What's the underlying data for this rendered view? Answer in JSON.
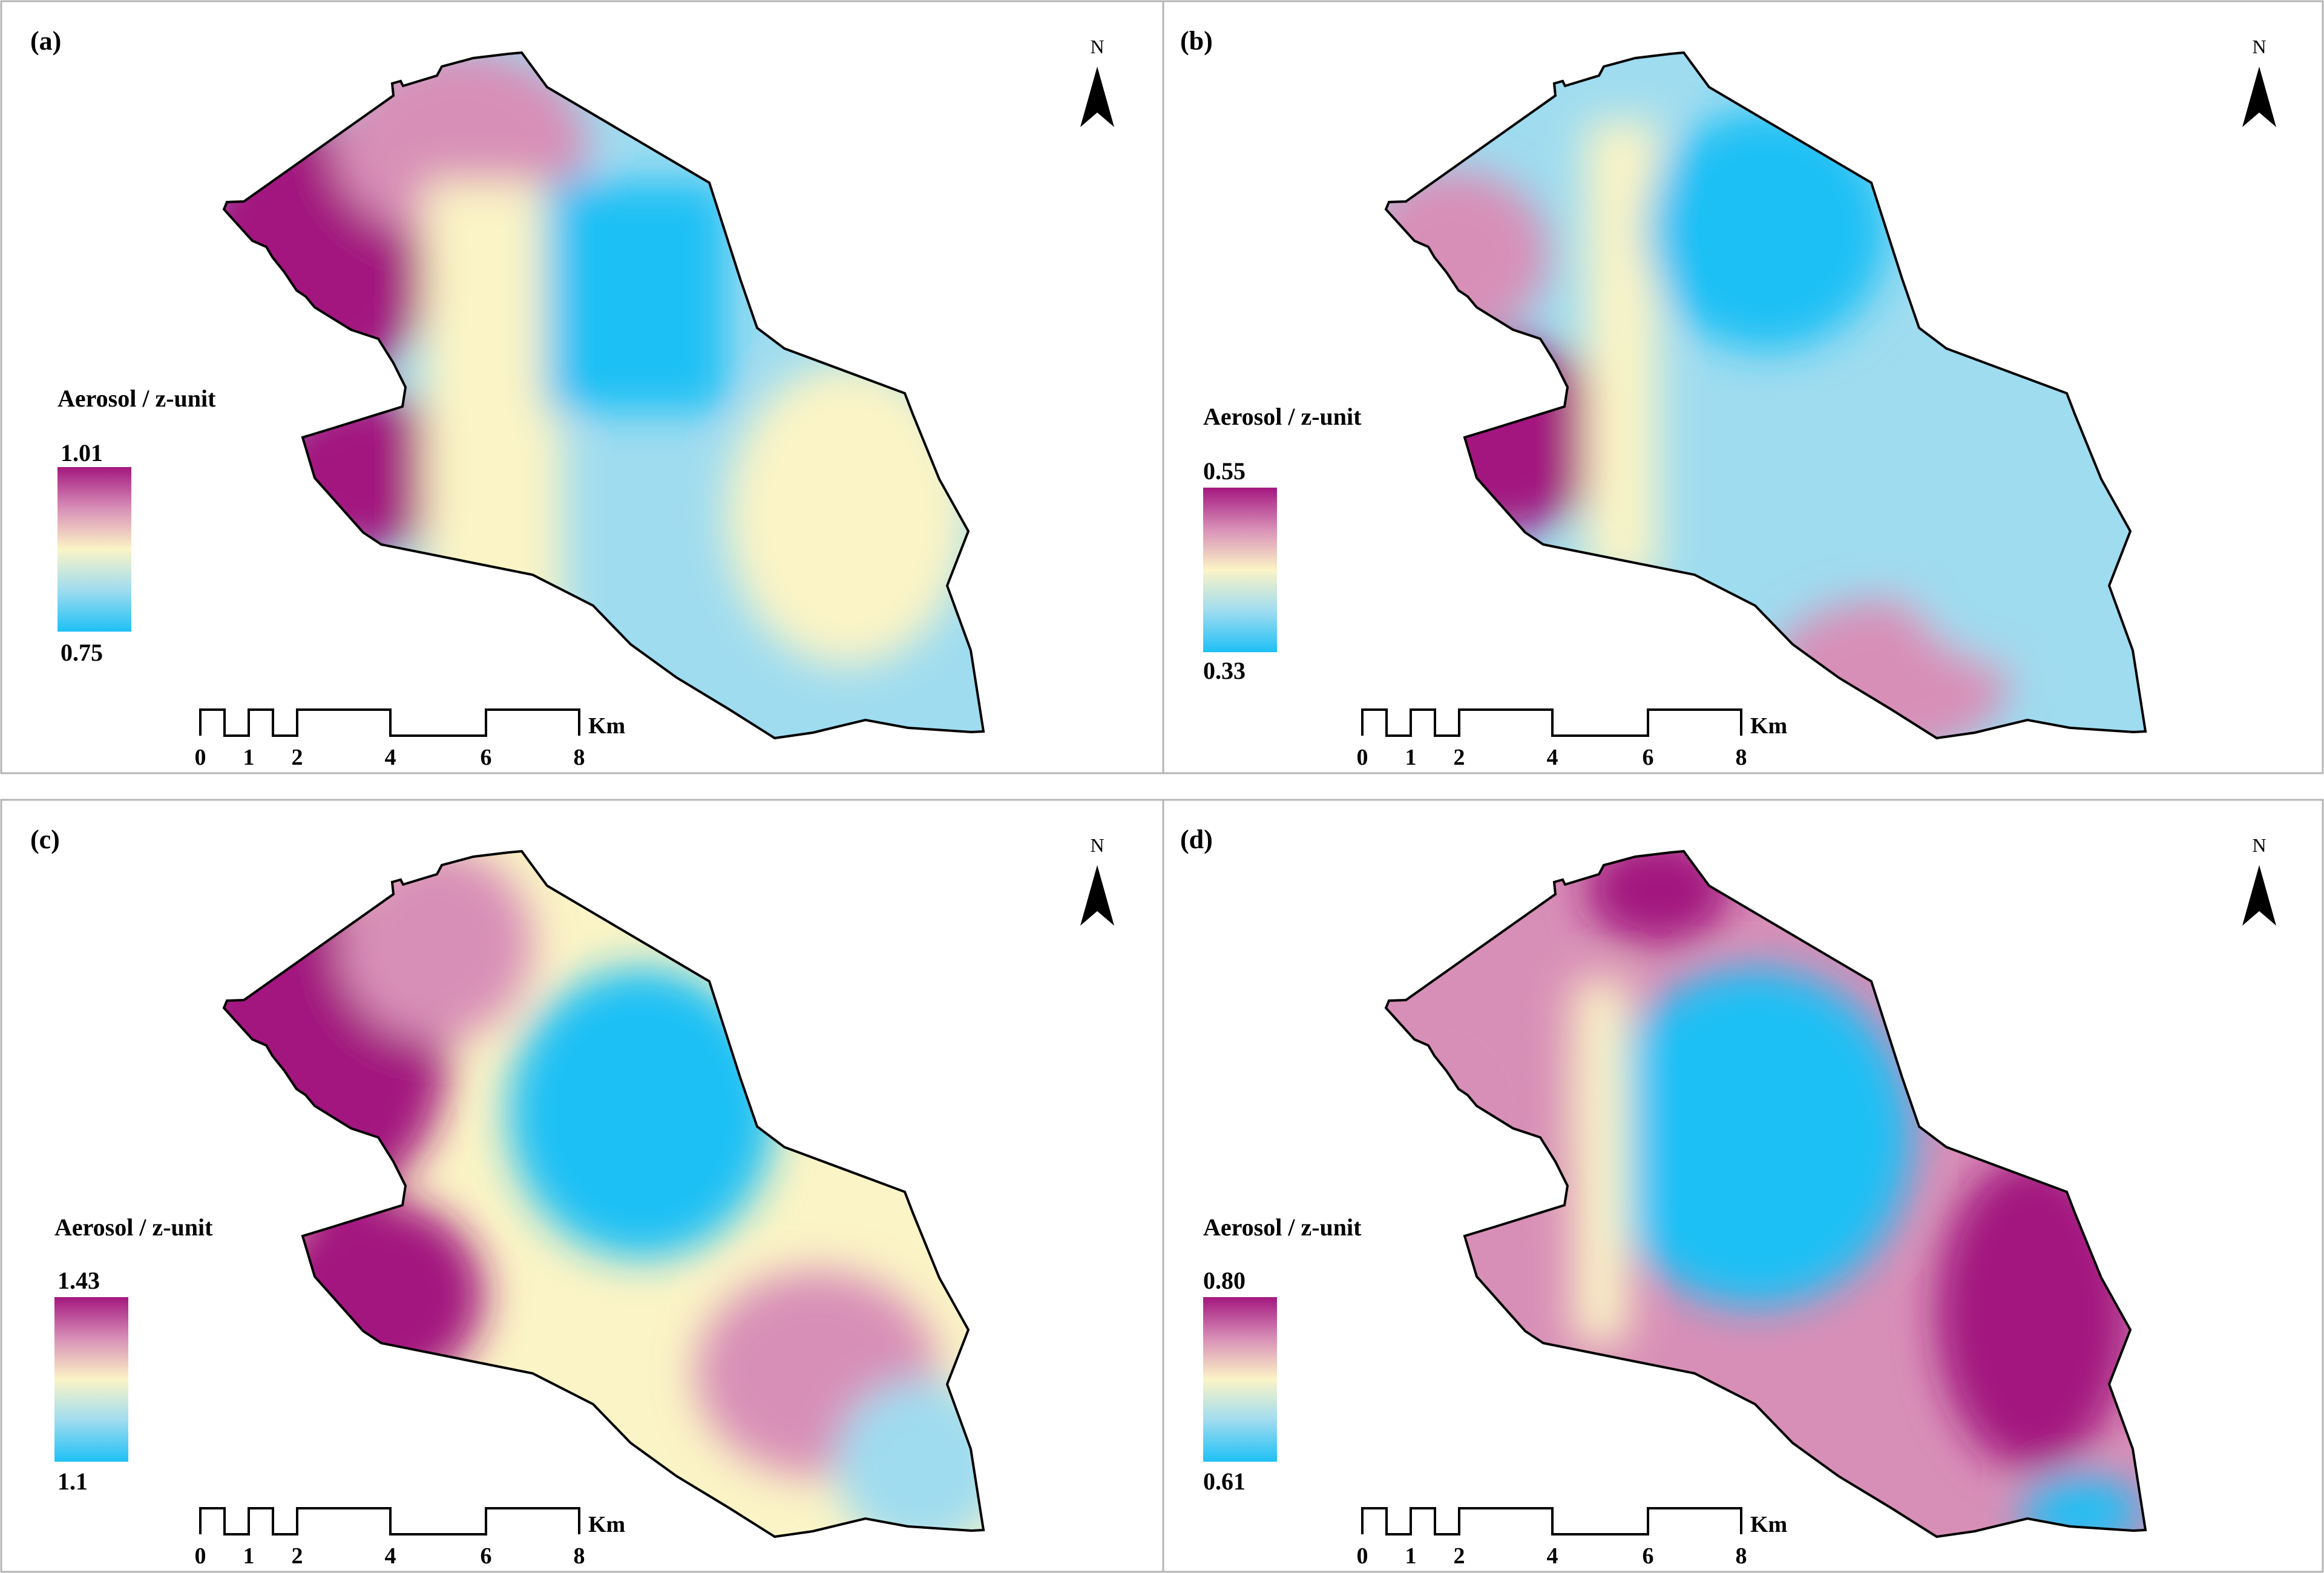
{
  "figure": {
    "colors": {
      "high": "#a3177f",
      "mid_high": "#d88fb7",
      "mid": "#fbf4c6",
      "mid_low": "#9fdcf0",
      "low": "#1ec0f5",
      "frame": "#b5b5b5",
      "outline": "#000000"
    },
    "north_arrow": {
      "label": "N",
      "icon": "north-arrow-icon"
    },
    "scale_bar": {
      "ticks": [
        "0",
        "1",
        "2",
        "4",
        "6",
        "8"
      ],
      "unit": "Km"
    },
    "panels": [
      {
        "id": "a",
        "label": "(a)",
        "legend_title": "Aerosol / z-unit",
        "legend_max": "1.01",
        "legend_min": "0.75"
      },
      {
        "id": "b",
        "label": "(b)",
        "legend_title": "Aerosol / z-unit",
        "legend_max": "0.55",
        "legend_min": "0.33"
      },
      {
        "id": "c",
        "label": "(c)",
        "legend_title": "Aerosol / z-unit",
        "legend_max": "1.43",
        "legend_min": "1.1"
      },
      {
        "id": "d",
        "label": "(d)",
        "legend_title": "Aerosol / z-unit",
        "legend_max": "0.80",
        "legend_min": "0.61"
      }
    ]
  }
}
